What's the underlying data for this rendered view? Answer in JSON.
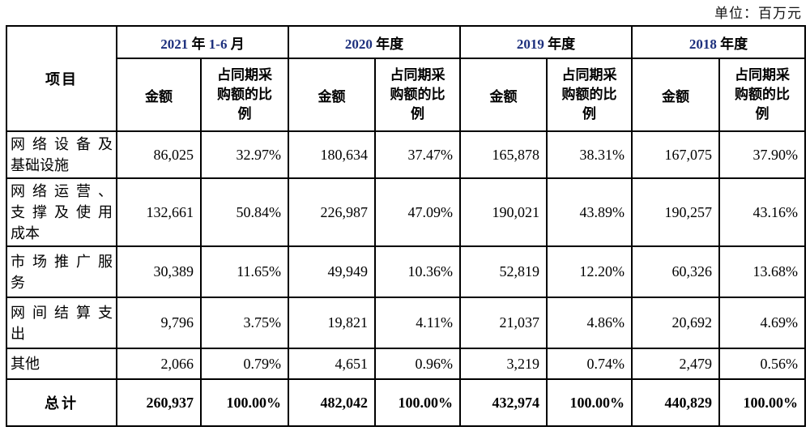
{
  "page": {
    "unit_label": "单位：百万元"
  },
  "colors": {
    "year_accent": "#1c2f7d",
    "text": "#000000"
  },
  "table": {
    "item_header": "项目",
    "amount_label": "金额",
    "ratio_label_lines": [
      "占同期采",
      "购额的比",
      "例"
    ],
    "periods": [
      {
        "name": "2021年1-6月",
        "parts": [
          {
            "text": "2021",
            "accent": true
          },
          {
            "text": " 年 ",
            "accent": false
          },
          {
            "text": "1-6",
            "accent": true
          },
          {
            "text": " 月",
            "accent": false
          }
        ]
      },
      {
        "name": "2020年度",
        "parts": [
          {
            "text": "2020",
            "accent": true
          },
          {
            "text": " 年度",
            "accent": false
          }
        ]
      },
      {
        "name": "2019年度",
        "parts": [
          {
            "text": "2019",
            "accent": true
          },
          {
            "text": " 年度",
            "accent": false
          }
        ]
      },
      {
        "name": "2018年度",
        "parts": [
          {
            "text": "2018",
            "accent": true
          },
          {
            "text": " 年度",
            "accent": false
          }
        ]
      }
    ],
    "rows": [
      {
        "label": "网络设备及基础设施",
        "label_lines": [
          "网络设备及",
          "基础设施"
        ],
        "values": [
          "86,025",
          "32.97%",
          "180,634",
          "37.47%",
          "165,878",
          "38.31%",
          "167,075",
          "37.90%"
        ]
      },
      {
        "label": "网络运营、支撑及使用成本",
        "label_lines": [
          "网络运营、",
          "支撑及使用",
          "成本"
        ],
        "values": [
          "132,661",
          "50.84%",
          "226,987",
          "47.09%",
          "190,021",
          "43.89%",
          "190,257",
          "43.16%"
        ]
      },
      {
        "label": "市场推广服务",
        "label_lines": [
          "市场推广服",
          "务"
        ],
        "values": [
          "30,389",
          "11.65%",
          "49,949",
          "10.36%",
          "52,819",
          "12.20%",
          "60,326",
          "13.68%"
        ]
      },
      {
        "label": "网间结算支出",
        "label_lines": [
          "网间结算支",
          "出"
        ],
        "values": [
          "9,796",
          "3.75%",
          "19,821",
          "4.11%",
          "21,037",
          "4.86%",
          "20,692",
          "4.69%"
        ]
      },
      {
        "label": "其他",
        "label_lines": [
          "其他"
        ],
        "values": [
          "2,066",
          "0.79%",
          "4,651",
          "0.96%",
          "3,219",
          "0.74%",
          "2,479",
          "0.56%"
        ]
      }
    ],
    "total": {
      "label": "总计",
      "values": [
        "260,937",
        "100.00%",
        "482,042",
        "100.00%",
        "432,974",
        "100.00%",
        "440,829",
        "100.00%"
      ]
    }
  }
}
